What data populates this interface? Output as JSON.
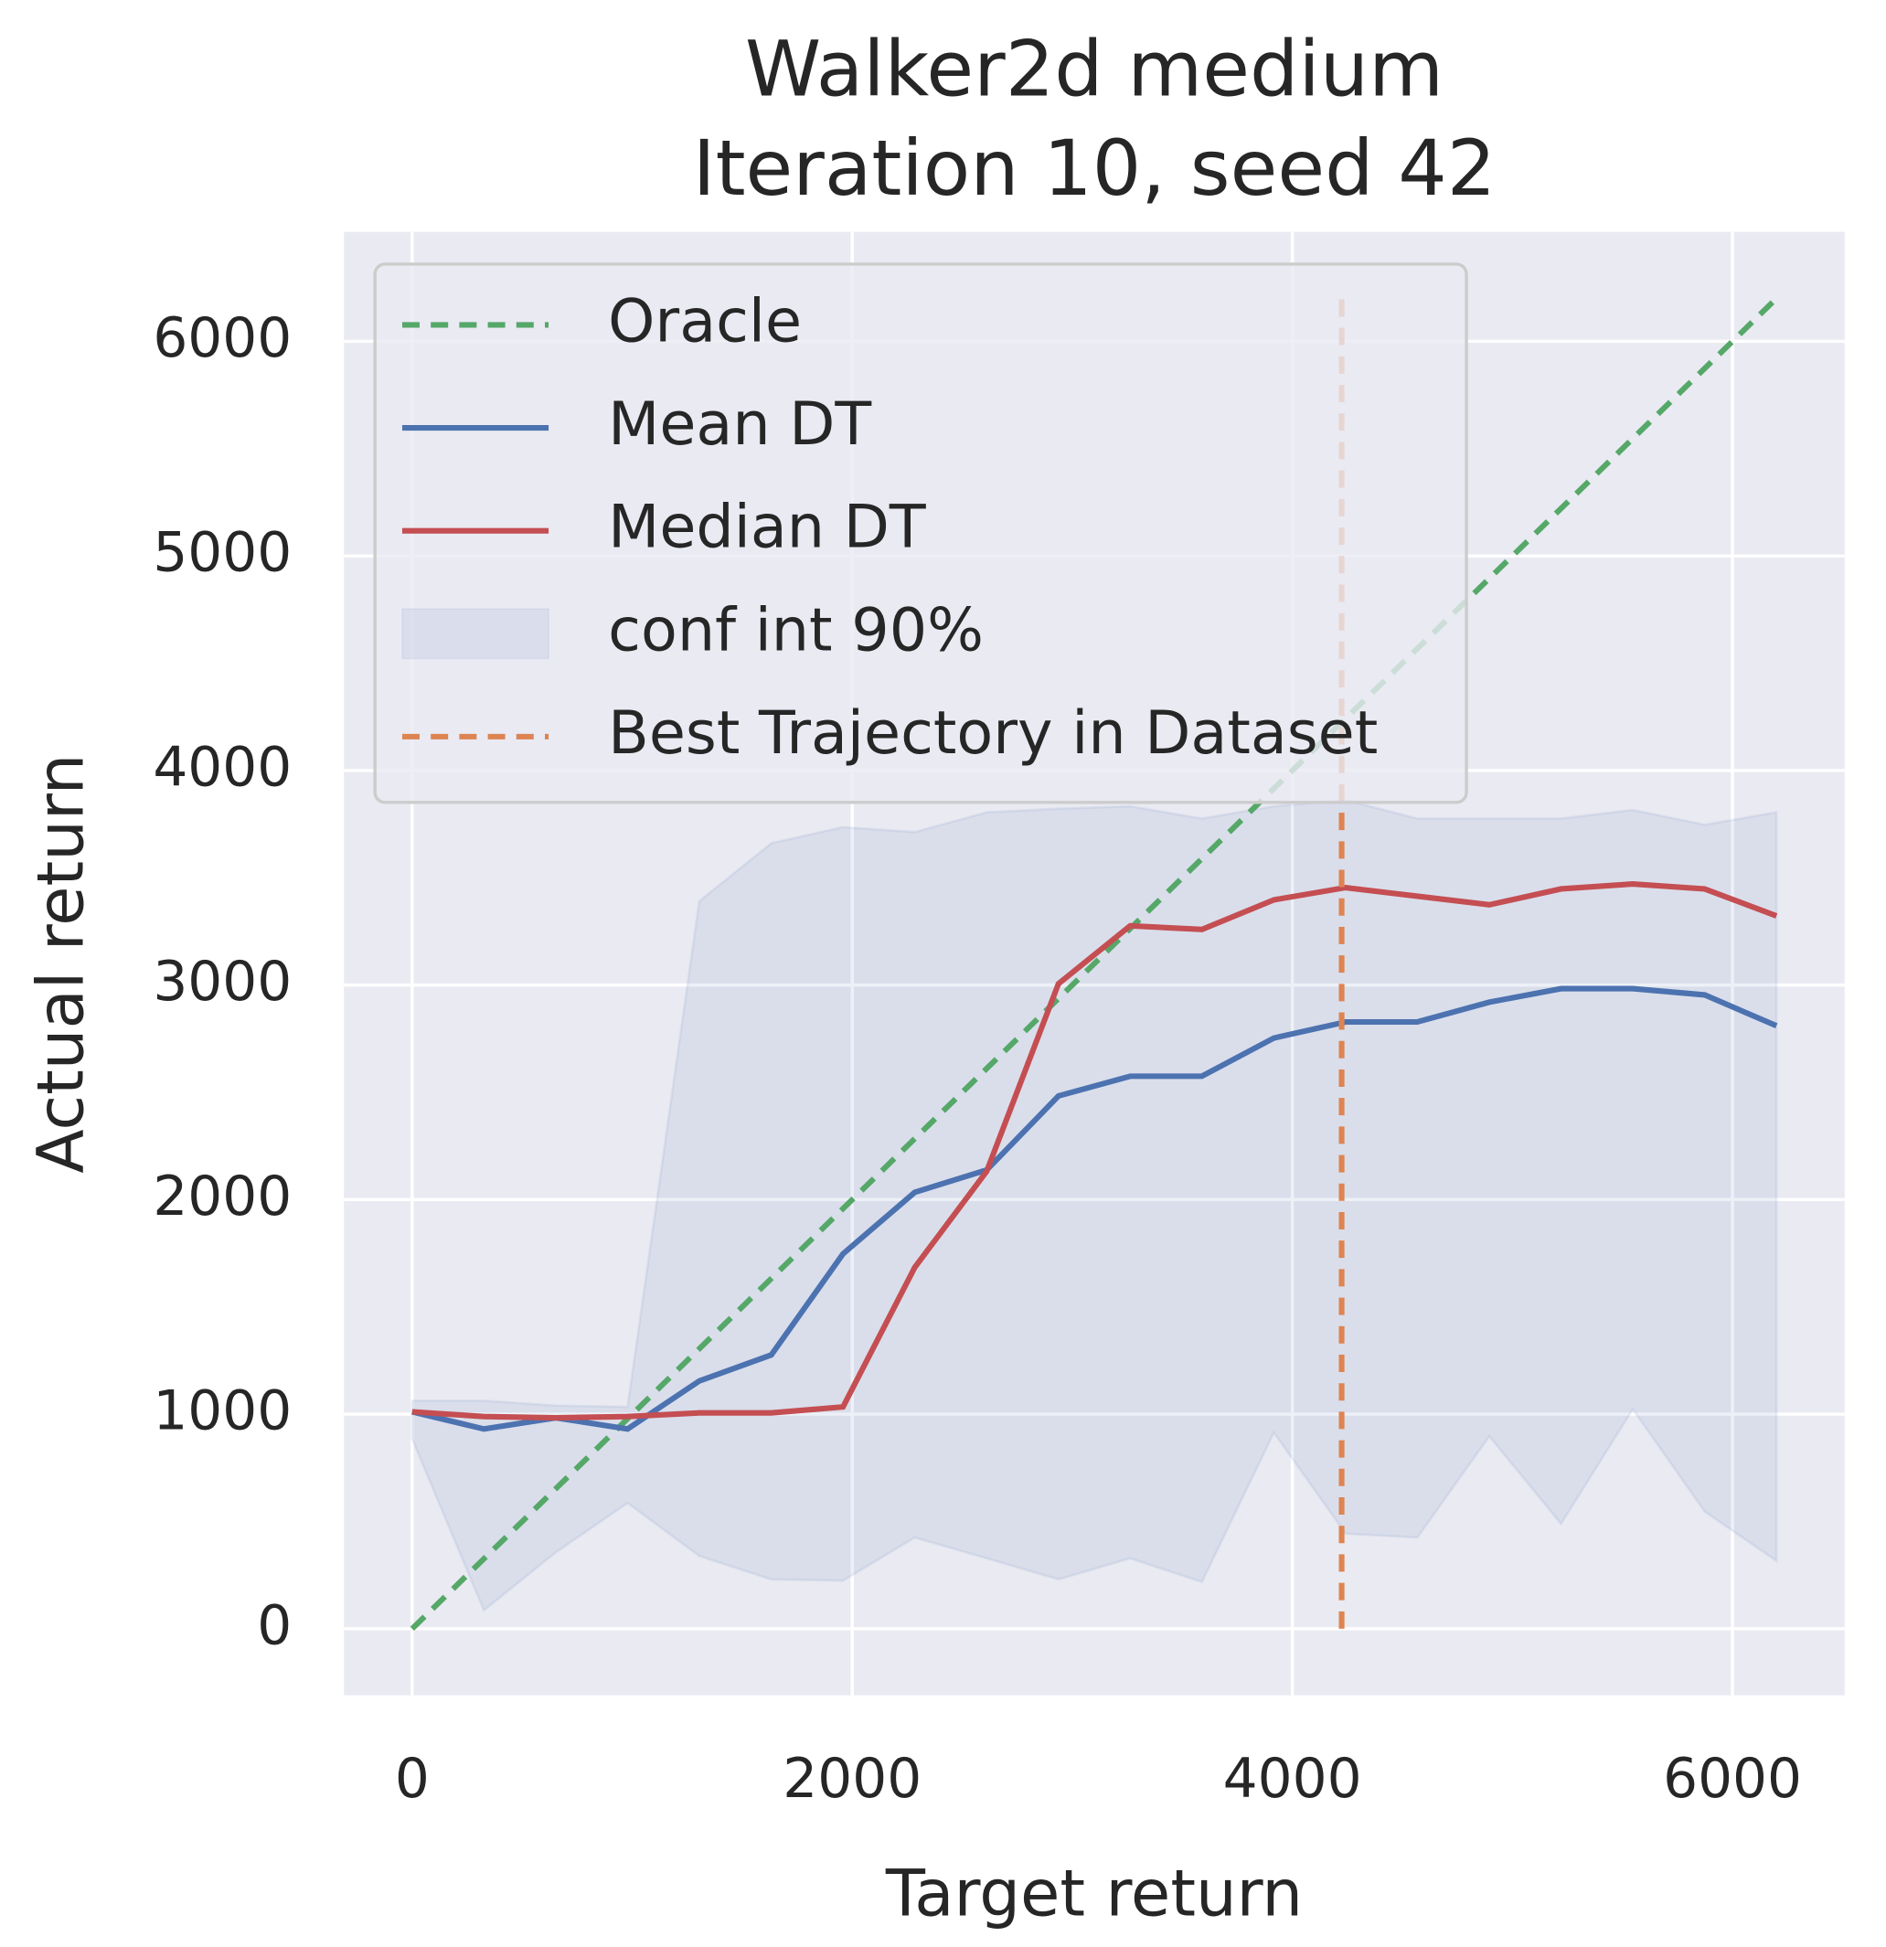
{
  "chart_data": {
    "type": "line",
    "title": [
      "Walker2d medium",
      "Iteration 10, seed 42"
    ],
    "xlabel": "Target return",
    "ylabel": "Actual return",
    "x": [
      0,
      326,
      653,
      979,
      1305,
      1632,
      1958,
      2284,
      2611,
      2937,
      3263,
      3589,
      3916,
      4242,
      4568,
      4895,
      5221,
      5547,
      5874,
      6200
    ],
    "series": [
      {
        "name": "Oracle",
        "color": "#55a868",
        "dashed": true,
        "x": [
          0,
          6200
        ],
        "values": [
          0,
          6200
        ]
      },
      {
        "name": "Mean DT",
        "color": "#4c72b0",
        "dashed": false,
        "values": [
          1011,
          931,
          983,
          931,
          1155,
          1276,
          1747,
          2034,
          2138,
          2483,
          2575,
          2575,
          2753,
          2828,
          2828,
          2920,
          2983,
          2983,
          2954,
          2810
        ]
      },
      {
        "name": "Median DT",
        "color": "#c44e52",
        "dashed": false,
        "values": [
          1011,
          989,
          983,
          989,
          1006,
          1006,
          1034,
          1684,
          2132,
          3006,
          3276,
          3259,
          3397,
          3454,
          3414,
          3374,
          3448,
          3471,
          3448,
          3322
        ]
      }
    ],
    "band": {
      "name": "conf int 90%",
      "color": "#4c72b0",
      "upper": [
        1063,
        1063,
        1040,
        1034,
        3391,
        3661,
        3736,
        3713,
        3805,
        3822,
        3833,
        3776,
        3833,
        3862,
        3776,
        3776,
        3776,
        3816,
        3747,
        3805
      ],
      "lower": [
        885,
        86,
        356,
        586,
        339,
        230,
        224,
        425,
        328,
        230,
        328,
        218,
        914,
        443,
        425,
        897,
        489,
        1023,
        546,
        316
      ]
    },
    "vline": {
      "name": "Best Trajectory in Dataset",
      "color": "#dd8452",
      "x": 4224,
      "y_range": [
        0,
        6200
      ]
    },
    "xlim": [
      -310,
      6510
    ],
    "ylim": [
      -310,
      6510
    ],
    "xticks": [
      0,
      2000,
      4000,
      6000
    ],
    "yticks": [
      0,
      1000,
      2000,
      3000,
      4000,
      5000,
      6000
    ],
    "grid": true,
    "legend": "upper left"
  }
}
